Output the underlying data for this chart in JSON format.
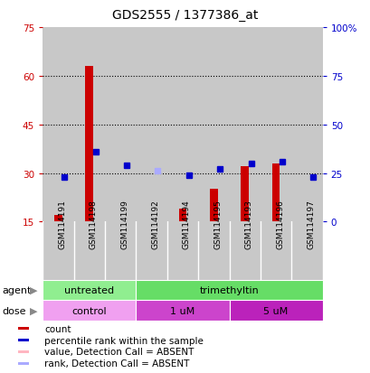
{
  "title": "GDS2555 / 1377386_at",
  "samples": [
    "GSM114191",
    "GSM114198",
    "GSM114199",
    "GSM114192",
    "GSM114194",
    "GSM114195",
    "GSM114193",
    "GSM114196",
    "GSM114197"
  ],
  "red_counts": [
    17,
    63,
    15,
    0,
    19,
    25,
    32,
    33,
    14
  ],
  "blue_ranks": [
    23,
    36,
    29,
    0,
    24,
    27,
    30,
    31,
    23
  ],
  "pink_counts": [
    0,
    0,
    0,
    15,
    0,
    0,
    0,
    0,
    0
  ],
  "lavender_ranks": [
    0,
    0,
    0,
    26,
    0,
    0,
    0,
    0,
    0
  ],
  "absent_flags": [
    false,
    false,
    false,
    true,
    false,
    false,
    false,
    false,
    false
  ],
  "ylim_left": [
    15,
    75
  ],
  "ylim_right": [
    0,
    100
  ],
  "yticks_left": [
    15,
    30,
    45,
    60,
    75
  ],
  "yticks_right": [
    0,
    25,
    50,
    75,
    100
  ],
  "ytick_labels_right": [
    "0",
    "25",
    "50",
    "75",
    "100%"
  ],
  "agent_groups": [
    {
      "label": "untreated",
      "start": 0,
      "end": 3,
      "color": "#90EE90"
    },
    {
      "label": "trimethyltin",
      "start": 3,
      "end": 9,
      "color": "#66DD66"
    }
  ],
  "dose_groups": [
    {
      "label": "control",
      "start": 0,
      "end": 3,
      "color": "#EE82EE"
    },
    {
      "label": "1 uM",
      "start": 3,
      "end": 6,
      "color": "#CC44CC"
    },
    {
      "label": "5 uM",
      "start": 6,
      "end": 9,
      "color": "#BB22BB"
    }
  ],
  "legend_items": [
    {
      "color": "#CC0000",
      "label": "count"
    },
    {
      "color": "#0000CC",
      "label": "percentile rank within the sample"
    },
    {
      "color": "#FFB6C1",
      "label": "value, Detection Call = ABSENT"
    },
    {
      "color": "#AAAAFF",
      "label": "rank, Detection Call = ABSENT"
    }
  ],
  "background_color": "#FFFFFF",
  "left_axis_color": "#CC0000",
  "right_axis_color": "#0000CC",
  "col_bg": "#C8C8C8",
  "bar_width": 0.25
}
